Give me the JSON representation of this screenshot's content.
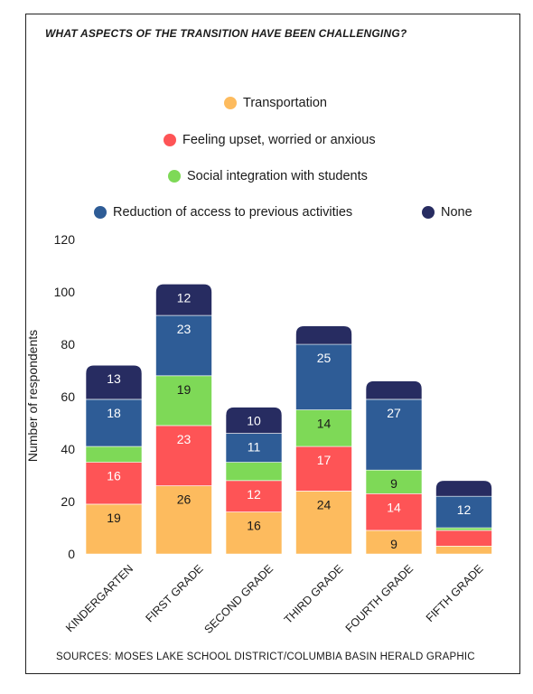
{
  "chart_data": {
    "type": "bar",
    "stacked": true,
    "title": "WHAT ASPECTS OF THE TRANSITION HAVE BEEN CHALLENGING?",
    "ylabel": "Number of respondents",
    "xlabel": "",
    "ylim": [
      0,
      120
    ],
    "yticks": [
      0,
      20,
      40,
      60,
      80,
      100,
      120
    ],
    "grid": false,
    "legend_position": "top",
    "categories": [
      "KINDERGARTEN",
      "FIRST GRADE",
      "SECOND GRADE",
      "THIRD GRADE",
      "FOURTH GRADE",
      "FIFTH GRADE"
    ],
    "series": [
      {
        "name": "Transportation",
        "color": "#fdbb5e",
        "values": [
          19,
          26,
          16,
          24,
          9,
          3
        ],
        "labels": [
          "19",
          "26",
          "16",
          "24",
          "9",
          ""
        ]
      },
      {
        "name": "Feeling upset, worried or anxious",
        "color": "#fe5456",
        "values": [
          16,
          23,
          12,
          17,
          14,
          6
        ],
        "labels": [
          "16",
          "23",
          "12",
          "17",
          "14",
          ""
        ]
      },
      {
        "name": "Social integration with students",
        "color": "#7ed957",
        "values": [
          6,
          19,
          7,
          14,
          9,
          1
        ],
        "labels": [
          "",
          "19",
          "",
          "14",
          "9",
          ""
        ]
      },
      {
        "name": "Reduction of access to previous activities",
        "color": "#2e5c96",
        "values": [
          18,
          23,
          11,
          25,
          27,
          12
        ],
        "labels": [
          "18",
          "23",
          "11",
          "25",
          "27",
          "12"
        ]
      },
      {
        "name": "None",
        "color": "#272c61",
        "values": [
          13,
          12,
          10,
          7,
          7,
          6
        ],
        "labels": [
          "13",
          "12",
          "10",
          "",
          "",
          ""
        ]
      }
    ]
  },
  "source": "SOURCES: MOSES LAKE SCHOOL DISTRICT/COLUMBIA BASIN HERALD GRAPHIC"
}
